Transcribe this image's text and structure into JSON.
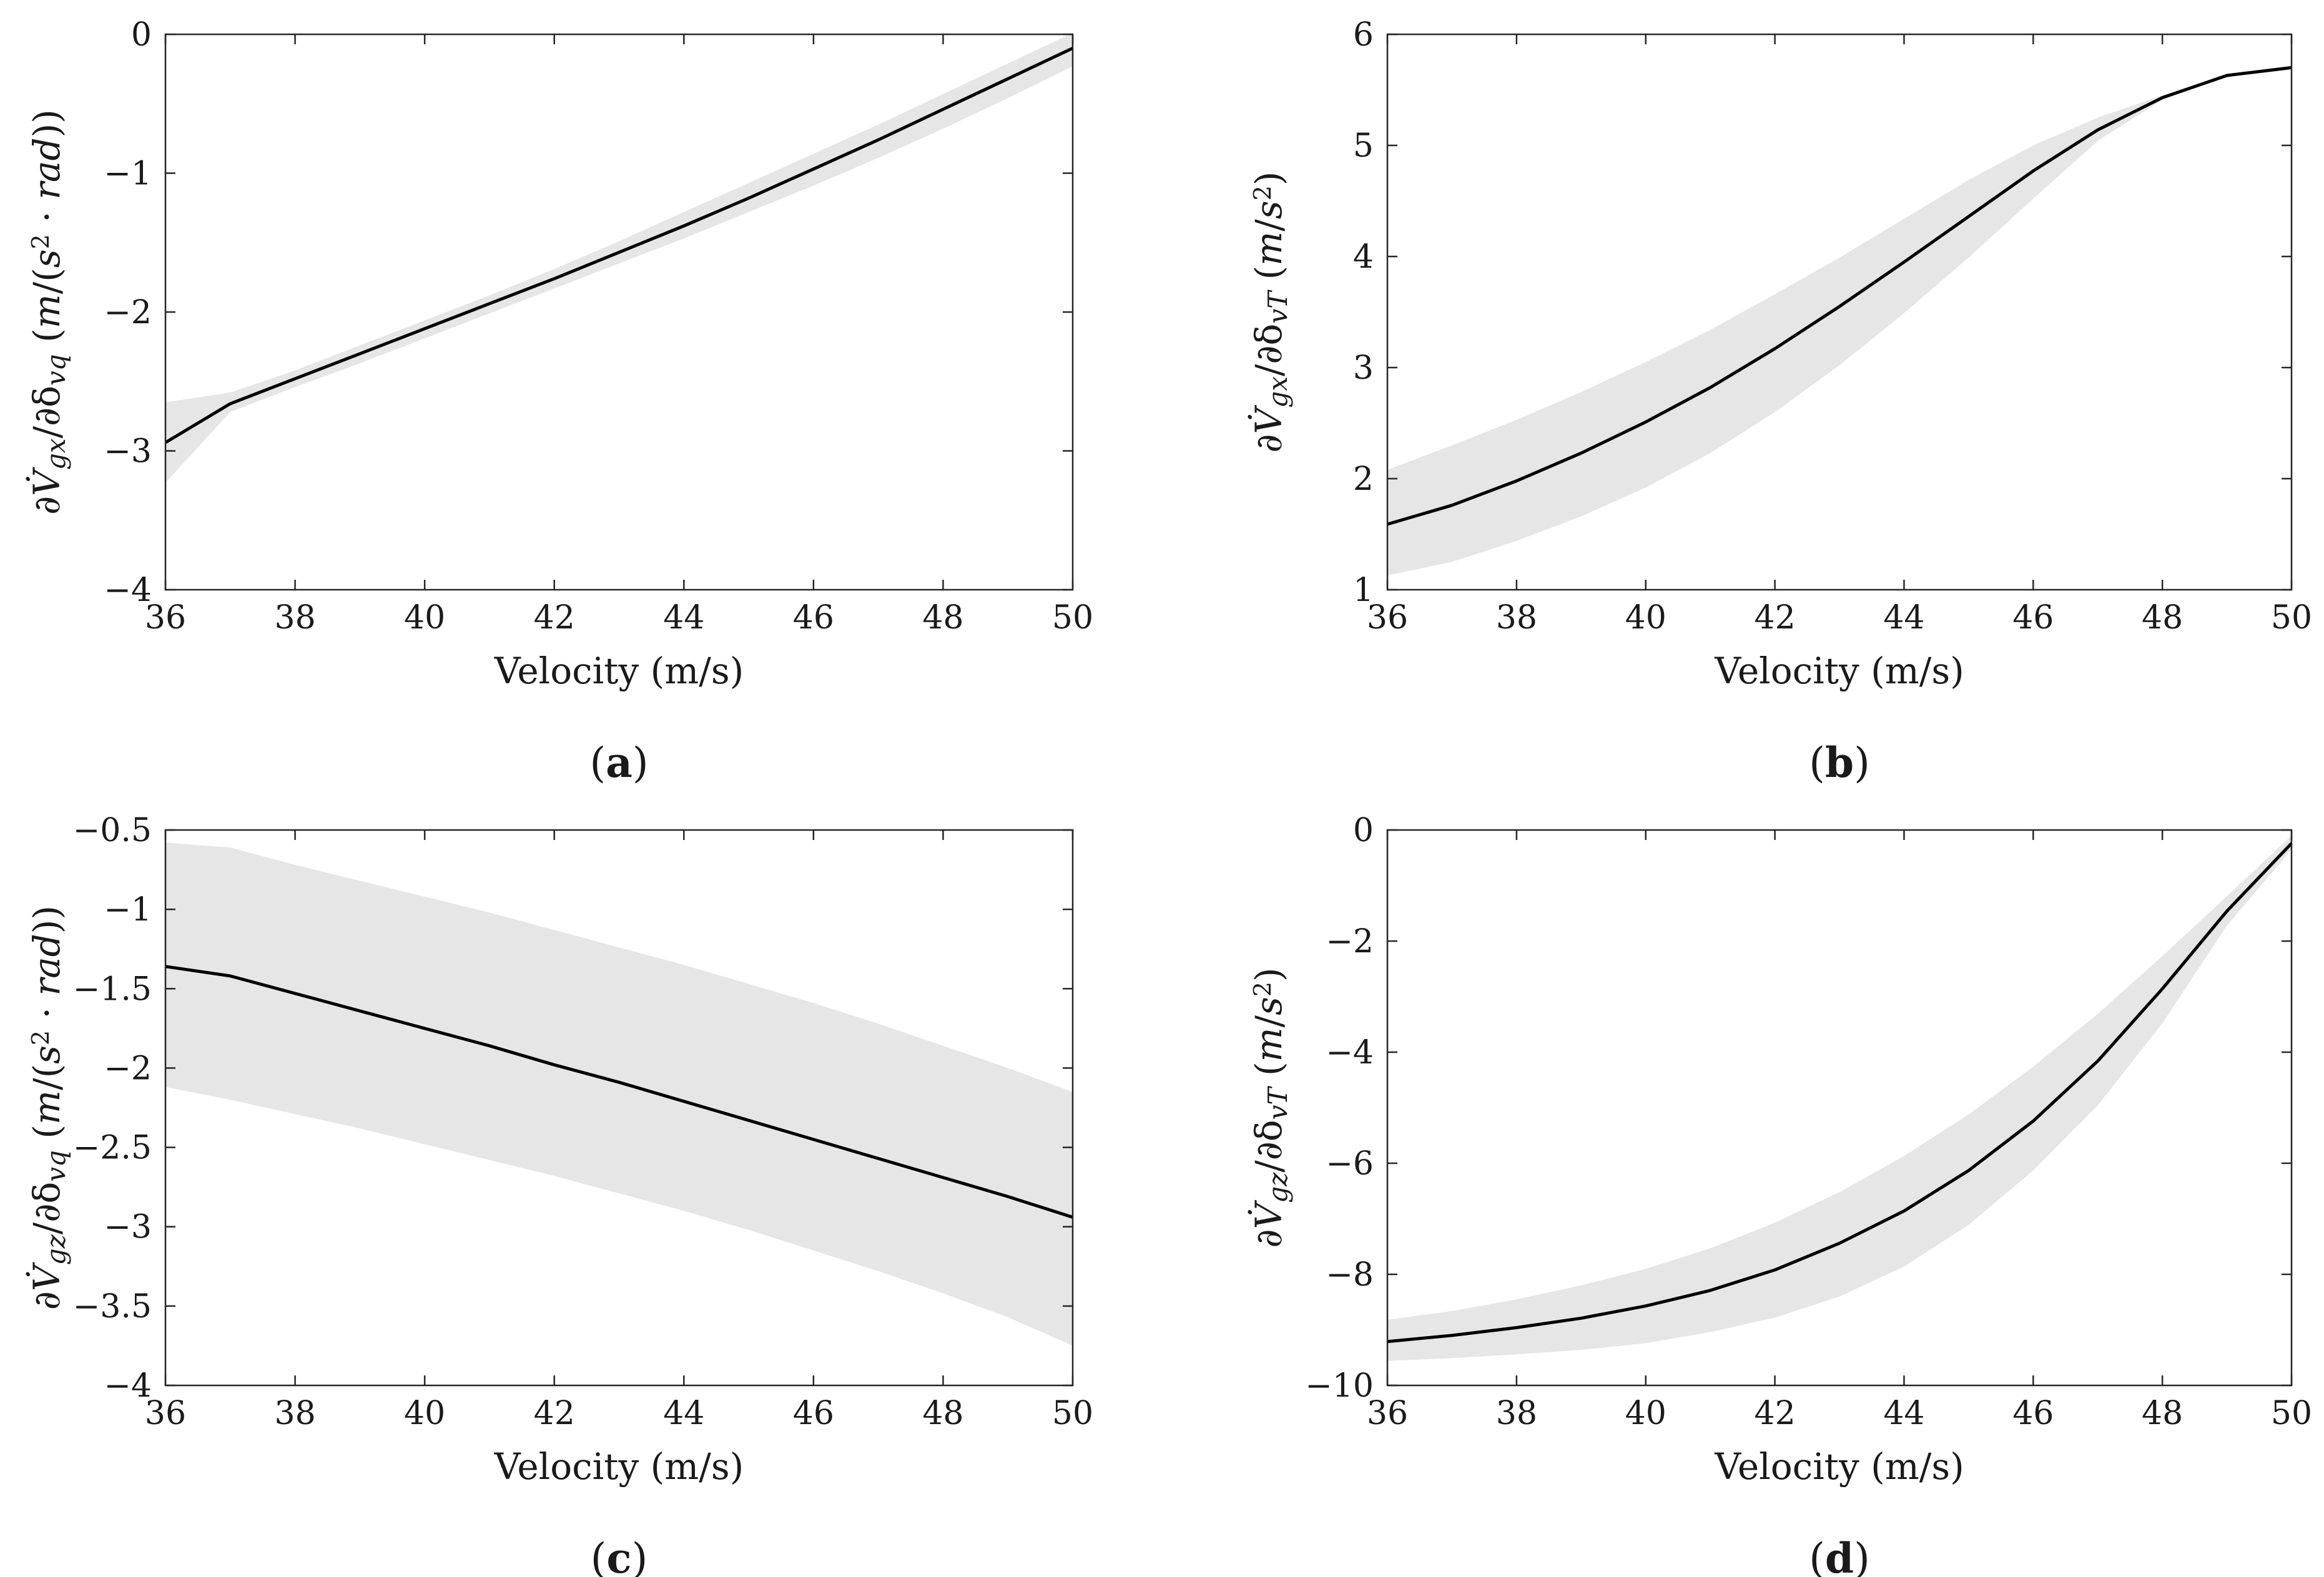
{
  "panels": [
    {
      "id": "a",
      "caption_letter": "a",
      "xlabel": "Velocity (m/s)",
      "ylabel": "∂V̇gx/∂δvq (m/(s²·rad))",
      "ylabel_parts": [
        {
          "t": "∂",
          "it": false
        },
        {
          "t": "V̇",
          "it": true
        },
        {
          "t": "gx",
          "it": true,
          "sub": true
        },
        {
          "t": "/∂δ",
          "it": false
        },
        {
          "t": "vq",
          "it": true,
          "sub": true
        },
        {
          "t": " (",
          "it": false
        },
        {
          "t": "m",
          "it": true
        },
        {
          "t": "/(",
          "it": false
        },
        {
          "t": "s",
          "it": true
        },
        {
          "t": "2",
          "it": false,
          "sup": true
        },
        {
          "t": " · ",
          "it": false
        },
        {
          "t": "rad",
          "it": true
        },
        {
          "t": "))",
          "it": false
        }
      ],
      "xticks": [
        36,
        38,
        40,
        42,
        44,
        46,
        48,
        50
      ],
      "xtick_labels": [
        "36",
        "38",
        "40",
        "42",
        "44",
        "46",
        "48",
        "50"
      ],
      "yticks": [
        -4,
        -3,
        -2,
        -1,
        0
      ],
      "ytick_labels": [
        "−4",
        "−3",
        "−2",
        "−1",
        "0"
      ]
    },
    {
      "id": "b",
      "caption_letter": "b",
      "xlabel": "Velocity (m/s)",
      "ylabel": "∂V̇gx/∂δvT (m/s²)",
      "ylabel_parts": [
        {
          "t": "∂",
          "it": false
        },
        {
          "t": "V̇",
          "it": true
        },
        {
          "t": "gx",
          "it": true,
          "sub": true
        },
        {
          "t": "/∂δ",
          "it": false
        },
        {
          "t": "vT",
          "it": true,
          "sub": true
        },
        {
          "t": " (",
          "it": false
        },
        {
          "t": "m",
          "it": true
        },
        {
          "t": "/",
          "it": false
        },
        {
          "t": "s",
          "it": true
        },
        {
          "t": "2",
          "it": false,
          "sup": true
        },
        {
          "t": ")",
          "it": false
        }
      ],
      "xticks": [
        36,
        38,
        40,
        42,
        44,
        46,
        48,
        50
      ],
      "xtick_labels": [
        "36",
        "38",
        "40",
        "42",
        "44",
        "46",
        "48",
        "50"
      ],
      "yticks": [
        1,
        2,
        3,
        4,
        5,
        6
      ],
      "ytick_labels": [
        "1",
        "2",
        "3",
        "4",
        "5",
        "6"
      ]
    },
    {
      "id": "c",
      "caption_letter": "c",
      "xlabel": "Velocity (m/s)",
      "ylabel": "∂V̇gz/∂δvq (m/(s²·rad))",
      "ylabel_parts": [
        {
          "t": "∂",
          "it": false
        },
        {
          "t": "V̇",
          "it": true
        },
        {
          "t": "gz",
          "it": true,
          "sub": true
        },
        {
          "t": "/∂δ",
          "it": false
        },
        {
          "t": "vq",
          "it": true,
          "sub": true
        },
        {
          "t": " (",
          "it": false
        },
        {
          "t": "m",
          "it": true
        },
        {
          "t": "/(",
          "it": false
        },
        {
          "t": "s",
          "it": true
        },
        {
          "t": "2",
          "it": false,
          "sup": true
        },
        {
          "t": " · ",
          "it": false
        },
        {
          "t": "rad",
          "it": true
        },
        {
          "t": "))",
          "it": false
        }
      ],
      "xticks": [
        36,
        38,
        40,
        42,
        44,
        46,
        48,
        50
      ],
      "xtick_labels": [
        "36",
        "38",
        "40",
        "42",
        "44",
        "46",
        "48",
        "50"
      ],
      "yticks": [
        -4,
        -3.5,
        -3,
        -2.5,
        -2,
        -1.5,
        -1,
        -0.5
      ],
      "ytick_labels": [
        "−4",
        "−3.5",
        "−3",
        "−2.5",
        "−2",
        "−1.5",
        "−1",
        "−0.5"
      ]
    },
    {
      "id": "d",
      "caption_letter": "d",
      "xlabel": "Velocity (m/s)",
      "ylabel": "∂V̇gz/∂δvT (m/s²)",
      "ylabel_parts": [
        {
          "t": "∂",
          "it": false
        },
        {
          "t": "V̇",
          "it": true
        },
        {
          "t": "gz",
          "it": true,
          "sub": true
        },
        {
          "t": "/∂δ",
          "it": false
        },
        {
          "t": "vT",
          "it": true,
          "sub": true
        },
        {
          "t": " (",
          "it": false
        },
        {
          "t": "m",
          "it": true
        },
        {
          "t": "/",
          "it": false
        },
        {
          "t": "s",
          "it": true
        },
        {
          "t": "2",
          "it": false,
          "sup": true
        },
        {
          "t": ")",
          "it": false
        }
      ],
      "xticks": [
        36,
        38,
        40,
        42,
        44,
        46,
        48,
        50
      ],
      "xtick_labels": [
        "36",
        "38",
        "40",
        "42",
        "44",
        "46",
        "48",
        "50"
      ],
      "yticks": [
        -10,
        -8,
        -6,
        -4,
        -2,
        0
      ],
      "ytick_labels": [
        "−10",
        "−8",
        "−6",
        "−4",
        "−2",
        "0"
      ]
    }
  ],
  "colors": {
    "line": "#000000",
    "band": "#e6e6e6",
    "axes": "#262626",
    "background": "#ffffff"
  },
  "chart_data": [
    {
      "type": "line",
      "panel": "a",
      "title": "",
      "xlabel": "Velocity (m/s)",
      "ylabel": "∂V̇gx/∂δvq (m/(s²·rad))",
      "xlim": [
        36,
        50
      ],
      "ylim": [
        -4,
        0
      ],
      "grid": false,
      "x": [
        36,
        37,
        38,
        39,
        40,
        41,
        42,
        43,
        44,
        45,
        46,
        47,
        48,
        49,
        50
      ],
      "series": [
        {
          "name": "mean",
          "values": [
            -2.94,
            -2.66,
            -2.48,
            -2.3,
            -2.12,
            -1.94,
            -1.76,
            -1.57,
            -1.38,
            -1.18,
            -0.97,
            -0.76,
            -0.54,
            -0.32,
            -0.1
          ]
        },
        {
          "name": "band_upper",
          "values": [
            -2.65,
            -2.58,
            -2.42,
            -2.24,
            -2.06,
            -1.88,
            -1.69,
            -1.49,
            -1.28,
            -1.07,
            -0.86,
            -0.65,
            -0.43,
            -0.21,
            0.01
          ]
        },
        {
          "name": "band_lower",
          "values": [
            -3.23,
            -2.72,
            -2.54,
            -2.37,
            -2.19,
            -2.01,
            -1.83,
            -1.65,
            -1.47,
            -1.28,
            -1.09,
            -0.89,
            -0.68,
            -0.46,
            -0.23
          ]
        }
      ]
    },
    {
      "type": "line",
      "panel": "b",
      "title": "",
      "xlabel": "Velocity (m/s)",
      "ylabel": "∂V̇gx/∂δvT (m/s²)",
      "xlim": [
        36,
        50
      ],
      "ylim": [
        1,
        6
      ],
      "grid": false,
      "x": [
        36,
        37,
        38,
        39,
        40,
        41,
        42,
        43,
        44,
        45,
        46,
        47,
        48,
        49,
        50
      ],
      "series": [
        {
          "name": "mean",
          "values": [
            1.59,
            1.76,
            1.98,
            2.23,
            2.51,
            2.82,
            3.17,
            3.55,
            3.95,
            4.36,
            4.77,
            5.14,
            5.43,
            5.63,
            5.7
          ]
        },
        {
          "name": "band_upper",
          "values": [
            2.08,
            2.3,
            2.53,
            2.78,
            3.05,
            3.34,
            3.66,
            3.99,
            4.34,
            4.69,
            5.0,
            5.25,
            5.45,
            5.63,
            5.7
          ]
        },
        {
          "name": "band_lower",
          "values": [
            1.13,
            1.25,
            1.44,
            1.66,
            1.92,
            2.23,
            2.6,
            3.02,
            3.49,
            3.99,
            4.52,
            5.04,
            5.41,
            5.63,
            5.7
          ]
        }
      ]
    },
    {
      "type": "line",
      "panel": "c",
      "title": "",
      "xlabel": "Velocity (m/s)",
      "ylabel": "∂V̇gz/∂δvq (m/(s²·rad))",
      "xlim": [
        36,
        50
      ],
      "ylim": [
        -4,
        -0.5
      ],
      "grid": false,
      "x": [
        36,
        37,
        38,
        39,
        40,
        41,
        42,
        43,
        44,
        45,
        46,
        47,
        48,
        49,
        50
      ],
      "series": [
        {
          "name": "mean",
          "values": [
            -1.36,
            -1.42,
            -1.53,
            -1.64,
            -1.75,
            -1.86,
            -1.98,
            -2.09,
            -2.21,
            -2.33,
            -2.45,
            -2.57,
            -2.69,
            -2.81,
            -2.94
          ]
        },
        {
          "name": "band_upper",
          "values": [
            -0.58,
            -0.61,
            -0.72,
            -0.82,
            -0.92,
            -1.02,
            -1.13,
            -1.24,
            -1.35,
            -1.47,
            -1.59,
            -1.72,
            -1.86,
            -2.0,
            -2.15
          ]
        },
        {
          "name": "band_lower",
          "values": [
            -2.12,
            -2.2,
            -2.29,
            -2.38,
            -2.48,
            -2.58,
            -2.68,
            -2.79,
            -2.9,
            -3.02,
            -3.15,
            -3.28,
            -3.42,
            -3.57,
            -3.75
          ]
        }
      ]
    },
    {
      "type": "line",
      "panel": "d",
      "title": "",
      "xlabel": "Velocity (m/s)",
      "ylabel": "∂V̇gz/∂δvT (m/s²)",
      "xlim": [
        36,
        50
      ],
      "ylim": [
        -10,
        0
      ],
      "grid": false,
      "x": [
        36,
        37,
        38,
        39,
        40,
        41,
        42,
        43,
        44,
        45,
        46,
        47,
        48,
        49,
        50
      ],
      "series": [
        {
          "name": "mean",
          "values": [
            -9.21,
            -9.1,
            -8.96,
            -8.79,
            -8.57,
            -8.29,
            -7.92,
            -7.44,
            -6.86,
            -6.13,
            -5.24,
            -4.16,
            -2.86,
            -1.46,
            -0.24
          ]
        },
        {
          "name": "band_upper",
          "values": [
            -8.82,
            -8.66,
            -8.45,
            -8.2,
            -7.9,
            -7.53,
            -7.07,
            -6.52,
            -5.87,
            -5.12,
            -4.26,
            -3.31,
            -2.27,
            -1.19,
            -0.1
          ]
        },
        {
          "name": "band_lower",
          "values": [
            -9.56,
            -9.51,
            -9.44,
            -9.36,
            -9.24,
            -9.04,
            -8.78,
            -8.4,
            -7.86,
            -7.11,
            -6.13,
            -4.96,
            -3.48,
            -1.72,
            -0.35
          ]
        }
      ]
    }
  ]
}
